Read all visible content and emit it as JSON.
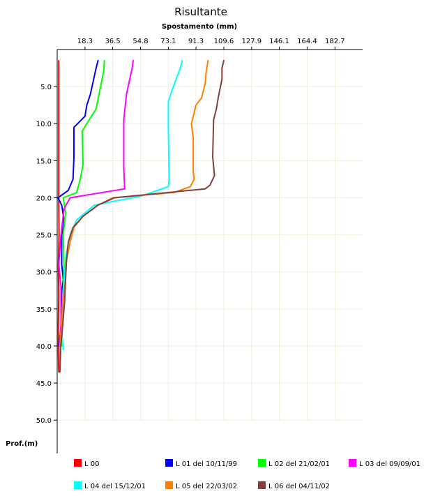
{
  "chart_data": {
    "type": "line",
    "title": "Risultante",
    "xlabel": "Spostamento (mm)",
    "ylabel": "Prof.(m)",
    "x_axis_position": "top",
    "y_axis_inverted": true,
    "xlim": [
      0,
      200.9
    ],
    "ylim": [
      0,
      54.5
    ],
    "x_ticks": [
      "18.3",
      "36.5",
      "54.8",
      "73.1",
      "91.3",
      "109.6",
      "127.9",
      "146.1",
      "164.4",
      "182.7"
    ],
    "y_ticks": [
      "5.0",
      "10.0",
      "15.0",
      "20.0",
      "25.0",
      "30.0",
      "35.0",
      "40.0",
      "45.0",
      "50.0"
    ],
    "grid": true,
    "legend_position": "bottom",
    "series": [
      {
        "name": "L 00",
        "color": "#ff0000",
        "points": [
          [
            1.0,
            1.5
          ],
          [
            1.0,
            20.0
          ],
          [
            1.2,
            25.0
          ],
          [
            0.8,
            29.0
          ],
          [
            1.0,
            33.0
          ],
          [
            0.8,
            37.0
          ],
          [
            0.8,
            41.0
          ],
          [
            1.0,
            43.5
          ]
        ]
      },
      {
        "name": "L 01 del 10/11/99",
        "color": "#0000ff",
        "points": [
          [
            26.9,
            1.5
          ],
          [
            25.6,
            2.5
          ],
          [
            21.9,
            6.0
          ],
          [
            19.5,
            7.5
          ],
          [
            18.3,
            9.0
          ],
          [
            11.0,
            10.5
          ],
          [
            11.0,
            14.5
          ],
          [
            10.4,
            17.5
          ],
          [
            7.3,
            19.0
          ],
          [
            0.5,
            20.0
          ],
          [
            3.0,
            21.0
          ],
          [
            4.5,
            23.0
          ],
          [
            3.0,
            25.0
          ],
          [
            3.0,
            29.0
          ],
          [
            4.0,
            31.0
          ],
          [
            3.0,
            33.0
          ],
          [
            3.0,
            37.0
          ],
          [
            1.0,
            40.0
          ]
        ]
      },
      {
        "name": "L 02 del 21/02/01",
        "color": "#00ff00",
        "points": [
          [
            31.1,
            1.5
          ],
          [
            30.5,
            3.0
          ],
          [
            25.6,
            8.0
          ],
          [
            16.4,
            11.0
          ],
          [
            17.0,
            15.5
          ],
          [
            15.2,
            17.5
          ],
          [
            12.8,
            19.3
          ],
          [
            4.0,
            20.0
          ],
          [
            5.5,
            22.0
          ],
          [
            4.0,
            25.0
          ],
          [
            4.5,
            29.0
          ],
          [
            4.0,
            33.0
          ],
          [
            3.0,
            37.0
          ],
          [
            3.0,
            40.0
          ]
        ]
      },
      {
        "name": "L 03 del 09/09/01",
        "color": "#ff00ff",
        "points": [
          [
            50.0,
            1.5
          ],
          [
            49.3,
            2.5
          ],
          [
            45.6,
            6.0
          ],
          [
            43.8,
            9.5
          ],
          [
            43.8,
            16.0
          ],
          [
            44.4,
            18.8
          ],
          [
            8.5,
            20.0
          ],
          [
            4.5,
            21.5
          ],
          [
            2.5,
            25.0
          ],
          [
            1.0,
            29.0
          ],
          [
            2.5,
            32.0
          ],
          [
            2.5,
            37.0
          ],
          [
            1.5,
            40.0
          ]
        ]
      },
      {
        "name": "L 04 del 15/12/01",
        "color": "#00ffff",
        "points": [
          [
            82.2,
            1.5
          ],
          [
            81.0,
            2.5
          ],
          [
            75.5,
            5.5
          ],
          [
            73.1,
            7.0
          ],
          [
            73.1,
            11.0
          ],
          [
            73.7,
            17.5
          ],
          [
            73.1,
            18.5
          ],
          [
            54.8,
            19.8
          ],
          [
            36.5,
            20.5
          ],
          [
            24.4,
            21.0
          ],
          [
            12.8,
            23.0
          ],
          [
            8.5,
            25.0
          ],
          [
            6.1,
            27.5
          ],
          [
            4.9,
            30.0
          ],
          [
            3.7,
            33.0
          ],
          [
            4.0,
            36.0
          ],
          [
            3.0,
            38.0
          ],
          [
            4.0,
            40.5
          ]
        ]
      },
      {
        "name": "L 05 del 22/03/02",
        "color": "#ff8000",
        "points": [
          [
            99.2,
            1.5
          ],
          [
            98.0,
            3.0
          ],
          [
            97.4,
            4.5
          ],
          [
            95.0,
            6.5
          ],
          [
            91.3,
            7.5
          ],
          [
            88.3,
            10.0
          ],
          [
            89.5,
            12.0
          ],
          [
            89.5,
            16.5
          ],
          [
            90.1,
            17.5
          ],
          [
            87.6,
            18.5
          ],
          [
            76.7,
            19.3
          ],
          [
            36.5,
            20.0
          ],
          [
            26.8,
            21.0
          ],
          [
            17.0,
            22.5
          ],
          [
            11.0,
            24.0
          ],
          [
            8.5,
            26.0
          ],
          [
            6.1,
            28.5
          ],
          [
            5.5,
            31.0
          ],
          [
            3.7,
            34.0
          ],
          [
            3.0,
            37.0
          ],
          [
            1.8,
            40.0
          ],
          [
            1.8,
            43.5
          ]
        ]
      },
      {
        "name": "L 06 del 04/11/02",
        "color": "#804040",
        "points": [
          [
            109.6,
            1.5
          ],
          [
            108.4,
            2.5
          ],
          [
            108.4,
            4.0
          ],
          [
            105.9,
            6.5
          ],
          [
            104.7,
            8.0
          ],
          [
            102.9,
            9.5
          ],
          [
            102.3,
            14.5
          ],
          [
            103.5,
            17.0
          ],
          [
            100.5,
            18.3
          ],
          [
            97.4,
            18.8
          ],
          [
            37.7,
            20.0
          ],
          [
            26.8,
            21.0
          ],
          [
            17.0,
            22.5
          ],
          [
            10.4,
            24.0
          ],
          [
            7.3,
            26.0
          ],
          [
            6.1,
            28.5
          ],
          [
            5.5,
            31.0
          ],
          [
            4.9,
            34.0
          ],
          [
            3.7,
            37.0
          ],
          [
            2.4,
            40.0
          ],
          [
            1.8,
            43.5
          ]
        ]
      }
    ]
  }
}
